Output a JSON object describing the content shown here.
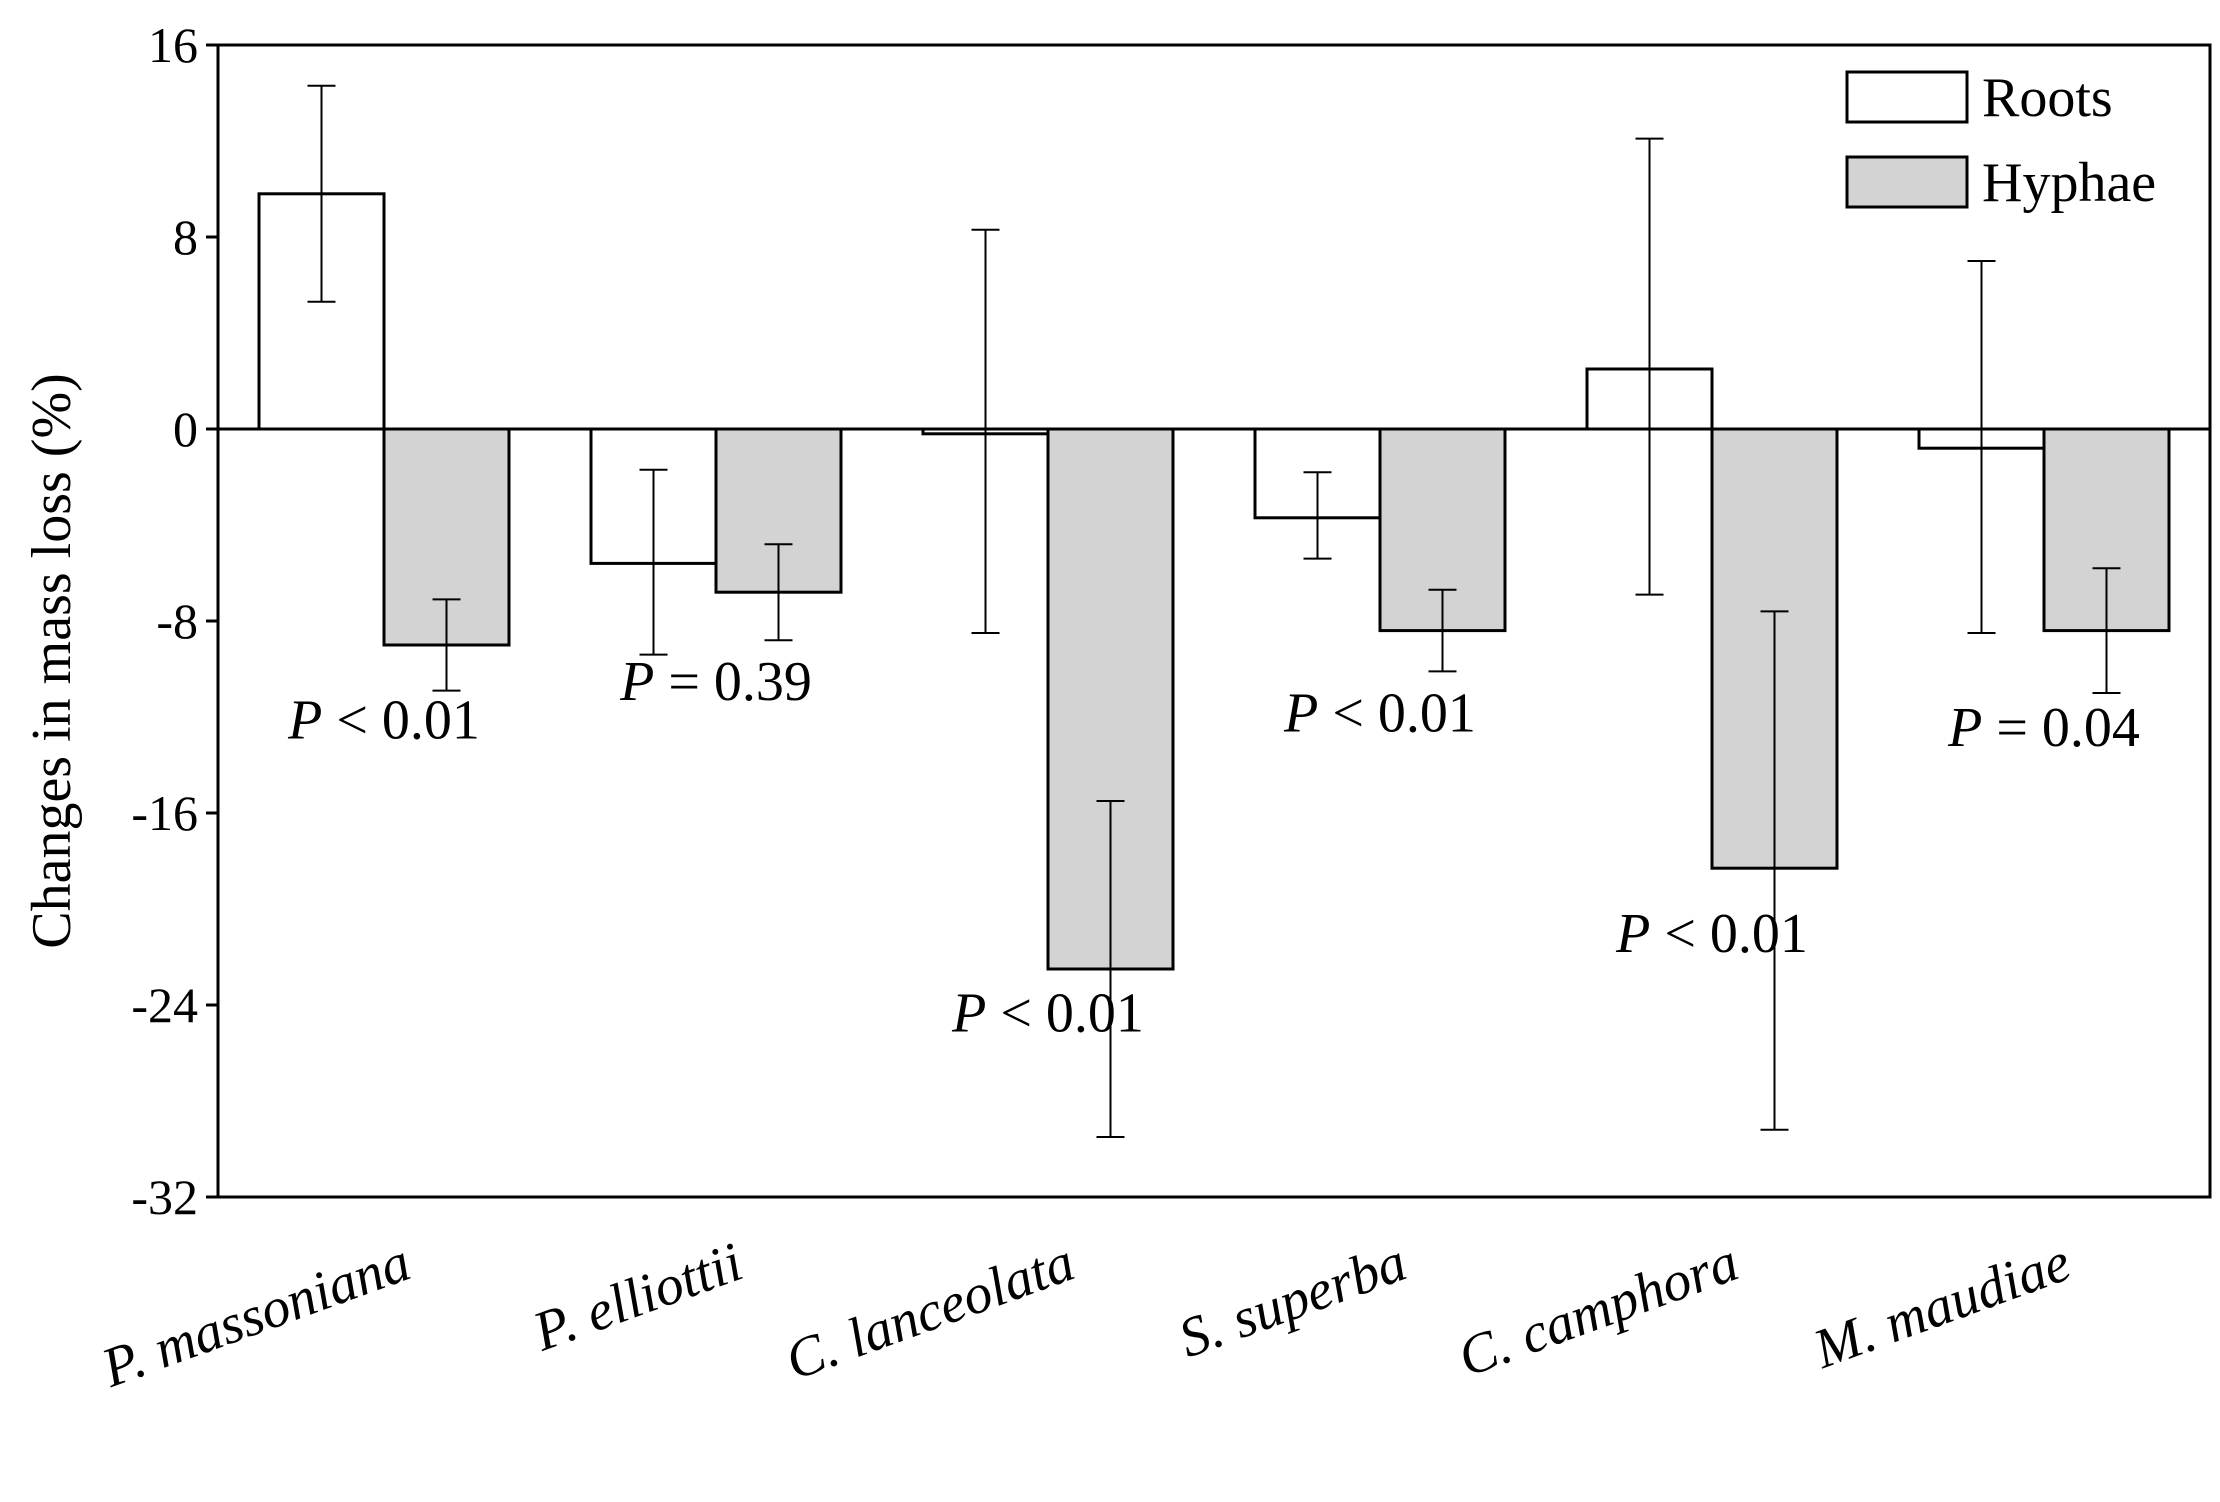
{
  "chart_data": {
    "type": "bar",
    "title": "",
    "xlabel": "",
    "ylabel": "Changes in mass loss (%)",
    "ylim": [
      -32,
      16
    ],
    "yticks": [
      16,
      8,
      0,
      -8,
      -16,
      -24,
      -32
    ],
    "ytick_labels": [
      "16",
      "8",
      "0",
      "-8",
      "-16",
      "-24",
      "-32"
    ],
    "grid": false,
    "legend_position": "top-right",
    "categories": [
      "P. massoniana",
      "P. elliottii",
      "C. lanceolata",
      "S. superba",
      "C. camphora",
      "M. maudiae"
    ],
    "series": [
      {
        "name": "Roots",
        "color": "#ffffff",
        "values": [
          9.8,
          -5.6,
          -0.2,
          -3.7,
          2.5,
          -0.8
        ],
        "err_upper": [
          14.3,
          -1.7,
          8.3,
          -1.8,
          12.1,
          7.0
        ],
        "err_lower": [
          5.3,
          -9.4,
          -8.5,
          -5.4,
          -6.9,
          -8.5
        ]
      },
      {
        "name": "Hyphae",
        "color": "#d3d3d3",
        "values": [
          -9.0,
          -6.8,
          -22.5,
          -8.4,
          -18.3,
          -8.4
        ],
        "err_upper": [
          -7.1,
          -4.8,
          -15.5,
          -6.7,
          -7.6,
          -5.8
        ],
        "err_lower": [
          -10.9,
          -8.8,
          -29.5,
          -10.1,
          -29.2,
          -11.0
        ]
      }
    ],
    "annotations": [
      {
        "text": "P < 0.01",
        "category": 0,
        "value": -12.9
      },
      {
        "text": "P = 0.39",
        "category": 1,
        "value": -11.3
      },
      {
        "text": "P < 0.01",
        "category": 2,
        "value": -25.1
      },
      {
        "text": "P < 0.01",
        "category": 3,
        "value": -12.6
      },
      {
        "text": "P < 0.01",
        "category": 4,
        "value": -21.8
      },
      {
        "text": "P = 0.04",
        "category": 5,
        "value": -13.2
      }
    ]
  }
}
